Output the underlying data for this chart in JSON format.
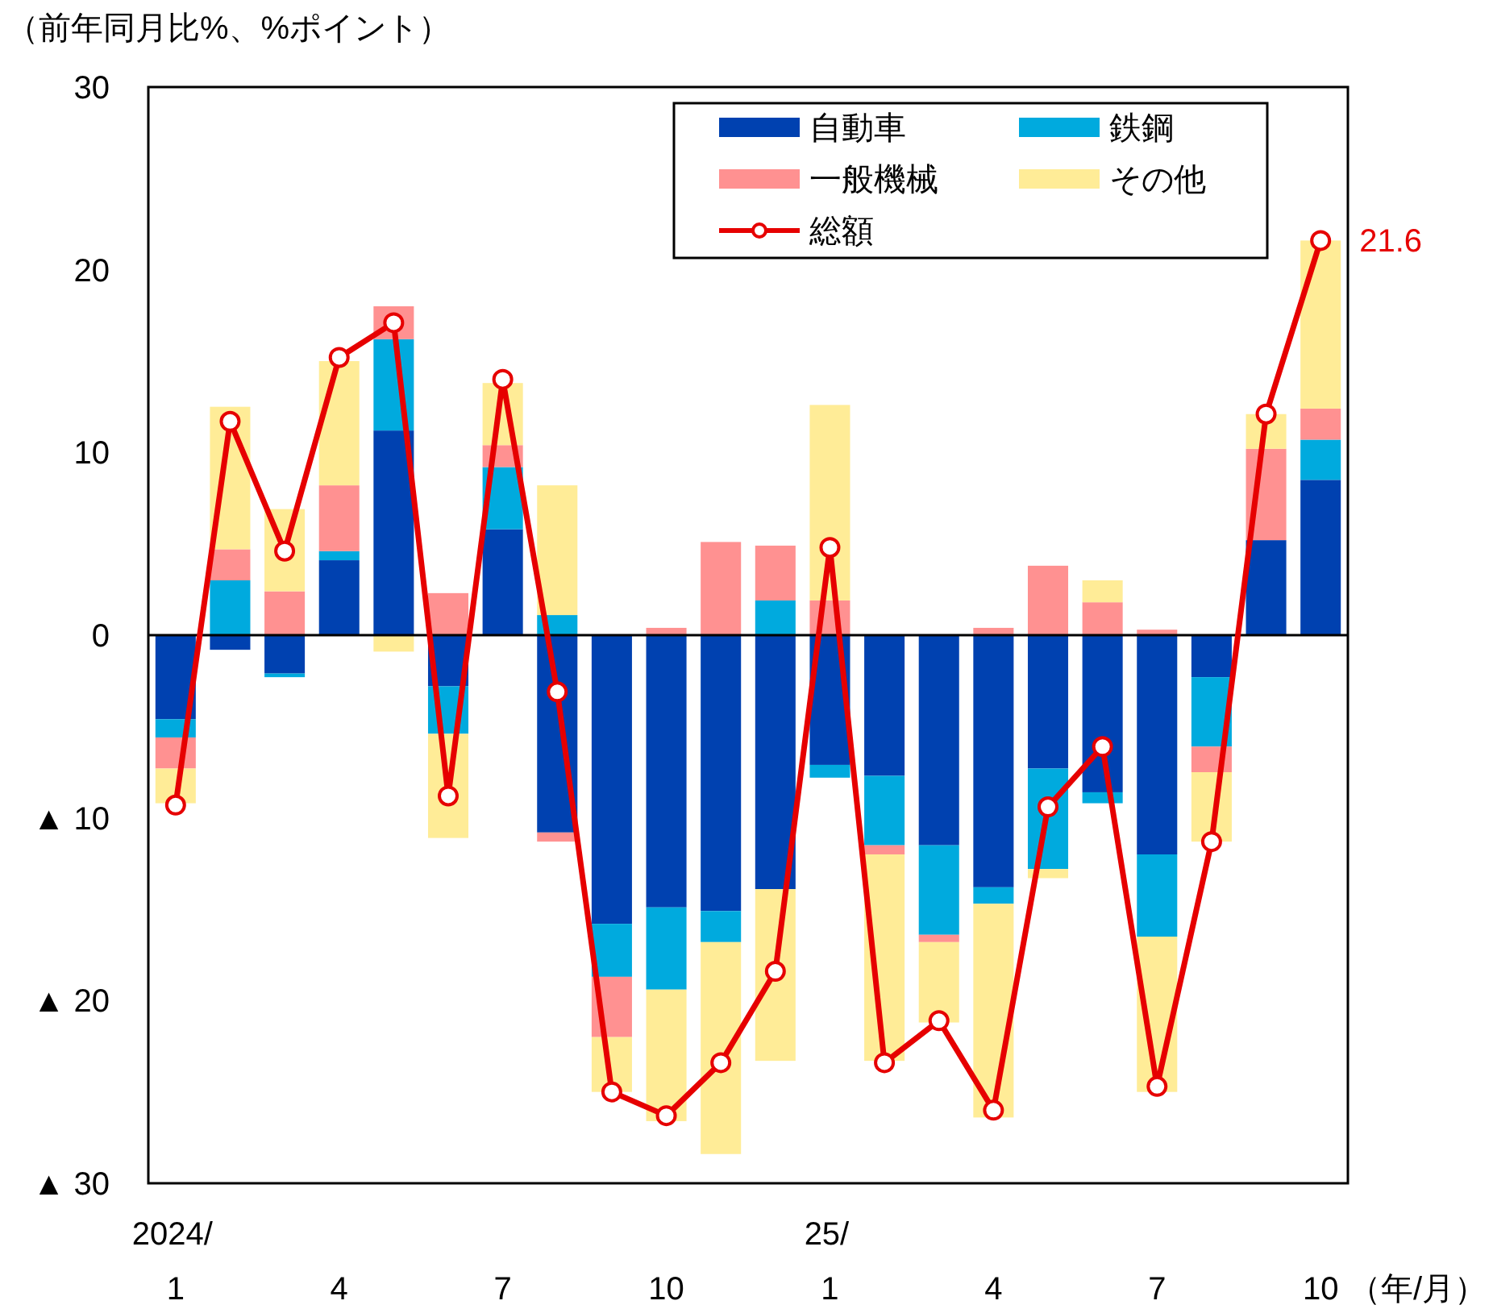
{
  "chart_data": {
    "type": "bar",
    "stacked": true,
    "ylabel": "（前年同月比%、%ポイント）",
    "xlabel": "（年/月）",
    "categories": [
      "2024/\n1",
      null,
      null,
      "4",
      null,
      null,
      "7",
      null,
      null,
      "10",
      null,
      null,
      "25/\n1",
      null,
      null,
      "4",
      null,
      null,
      "7",
      null,
      null,
      "10"
    ],
    "ylim": [
      -30,
      30
    ],
    "yticks": [
      30,
      20,
      10,
      0,
      {
        "value": -10,
        "label": "▲ 10"
      },
      {
        "value": -20,
        "label": "▲ 20"
      },
      {
        "value": -30,
        "label": "▲ 30"
      }
    ],
    "legend": "top right",
    "series": [
      {
        "name": "自動車",
        "color": "#0041b0",
        "values": [
          -4.6,
          -0.8,
          -2.1,
          4.1,
          11.2,
          -2.8,
          5.8,
          -10.8,
          -15.8,
          -14.9,
          -15.1,
          -13.9,
          -7.1,
          -7.7,
          -11.5,
          -13.8,
          -7.3,
          -8.6,
          -12.0,
          -2.3,
          5.2,
          8.5
        ]
      },
      {
        "name": "鉄鋼",
        "color": "#00aade",
        "values": [
          -1.0,
          3.0,
          -0.2,
          0.5,
          5.0,
          -2.6,
          3.4,
          1.1,
          -2.9,
          -4.5,
          -1.7,
          1.9,
          -0.7,
          -3.8,
          -4.9,
          -0.9,
          -5.5,
          -0.6,
          -4.5,
          -3.8,
          null,
          2.2
        ]
      },
      {
        "name": "一般機械",
        "color": "#ff9191",
        "values": [
          -1.7,
          1.7,
          2.4,
          3.6,
          1.8,
          2.3,
          1.2,
          -0.5,
          -3.3,
          0.4,
          5.1,
          3.0,
          1.9,
          -0.5,
          -0.4,
          0.4,
          3.8,
          1.8,
          0.3,
          -1.4,
          5.0,
          1.7
        ]
      },
      {
        "name": "その他",
        "color": "#ffec97",
        "values": [
          -1.9,
          7.8,
          4.5,
          6.8,
          -0.9,
          -5.7,
          3.4,
          7.1,
          -3.0,
          -7.2,
          -11.6,
          -9.4,
          10.7,
          -11.3,
          -4.4,
          -11.7,
          -0.5,
          1.2,
          -8.5,
          -3.8,
          1.9,
          9.2
        ]
      },
      {
        "name": "総額",
        "type": "line",
        "color": "#e60000",
        "marker": "circle",
        "line_style": "solid",
        "values": [
          -9.3,
          11.7,
          4.6,
          15.2,
          17.1,
          -8.8,
          14.0,
          -3.1,
          -25.0,
          -26.3,
          -23.4,
          -18.4,
          4.8,
          -23.4,
          -21.1,
          -26.0,
          -9.4,
          -6.1,
          -24.7,
          -11.3,
          12.1,
          21.6
        ],
        "value_labels": [
          null,
          null,
          null,
          null,
          null,
          null,
          null,
          null,
          null,
          null,
          null,
          null,
          null,
          null,
          null,
          null,
          null,
          null,
          null,
          null,
          null,
          "21.6"
        ]
      }
    ]
  }
}
